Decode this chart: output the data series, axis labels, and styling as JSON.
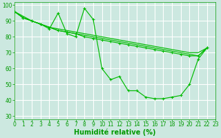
{
  "background_color": "#cce8e0",
  "grid_color": "#aaddcc",
  "line_color": "#00bb00",
  "xlabel": "Humidité relative (%)",
  "xlabel_color": "#009900",
  "xlabel_fontsize": 7,
  "tick_color": "#009900",
  "tick_fontsize": 5.5,
  "xlim": [
    0,
    23
  ],
  "ylim": [
    28,
    102
  ],
  "yticks": [
    30,
    40,
    50,
    60,
    70,
    80,
    90,
    100
  ],
  "xticks": [
    0,
    1,
    2,
    3,
    4,
    5,
    6,
    7,
    8,
    9,
    10,
    11,
    12,
    13,
    14,
    15,
    16,
    17,
    18,
    19,
    20,
    21,
    22,
    23
  ],
  "line1_x": [
    0,
    1,
    2,
    3,
    4,
    5,
    6,
    7,
    8,
    9,
    10,
    11,
    12,
    13,
    14,
    15,
    16,
    17,
    18,
    19,
    20,
    21,
    22
  ],
  "line1_y": [
    96,
    92,
    90,
    88,
    85,
    95,
    82,
    80,
    98,
    91,
    60,
    53,
    55,
    46,
    46,
    42,
    41,
    41,
    42,
    43,
    50,
    66,
    73
  ],
  "line2_x": [
    0,
    1,
    2,
    3,
    4,
    5,
    6,
    7,
    8,
    9,
    10,
    11,
    12,
    13,
    14,
    15,
    16,
    17,
    18,
    19,
    20,
    21,
    22
  ],
  "line2_y": [
    96,
    92,
    90,
    88,
    86,
    84,
    83,
    82,
    80,
    79,
    78,
    77,
    76,
    75,
    74,
    73,
    72,
    71,
    70,
    69,
    68,
    68,
    73
  ],
  "line3_x": [
    0,
    1,
    2,
    3,
    4,
    5,
    6,
    7,
    8,
    9,
    10,
    11,
    12,
    13,
    14,
    15,
    16,
    17,
    18,
    19,
    20,
    21,
    22
  ],
  "line3_y": [
    96,
    92,
    90,
    88,
    86,
    85,
    84,
    83,
    82,
    81,
    80,
    79,
    78,
    77,
    76,
    75,
    74,
    73,
    72,
    71,
    70,
    70,
    73
  ],
  "line4_x": [
    0,
    2,
    4,
    5,
    6,
    7,
    8,
    9,
    10,
    11,
    12,
    13,
    14,
    15,
    16,
    17,
    18,
    19,
    20,
    21,
    22
  ],
  "line4_y": [
    96,
    90,
    86,
    84,
    83,
    82,
    81,
    80,
    79,
    78,
    77,
    76,
    75,
    74,
    73,
    72,
    71,
    70,
    69,
    68,
    73
  ]
}
